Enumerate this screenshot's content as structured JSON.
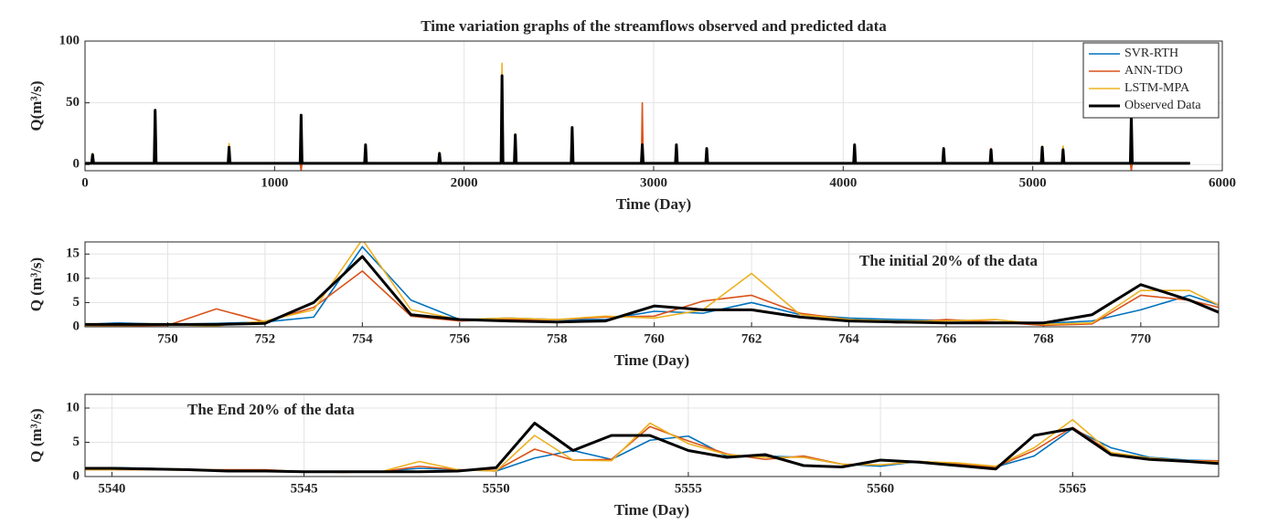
{
  "chart_data": [
    {
      "type": "line",
      "title": "Time variation graphs of the streamflows observed and predicted data",
      "x_label": "Time (Day)",
      "y_label": "Q(m³/s)",
      "xlim": [
        0,
        6000
      ],
      "xticks": [
        0,
        1000,
        2000,
        3000,
        4000,
        5000,
        6000
      ],
      "ylim": [
        -5,
        100
      ],
      "yticks": [
        0,
        50,
        100
      ],
      "grid": true,
      "legend": "upper right",
      "x": [
        0,
        35,
        40,
        45,
        365,
        370,
        375,
        755,
        760,
        765,
        1135,
        1140,
        1145,
        1475,
        1480,
        1485,
        1865,
        1870,
        1875,
        2195,
        2200,
        2205,
        2265,
        2270,
        2275,
        2565,
        2570,
        2575,
        2935,
        2940,
        2945,
        3115,
        3120,
        3125,
        3275,
        3280,
        3285,
        4055,
        4060,
        4065,
        4525,
        4530,
        4535,
        4775,
        4780,
        4785,
        5045,
        5050,
        5055,
        5155,
        5160,
        5165,
        5515,
        5520,
        5525,
        5830
      ],
      "series": [
        {
          "name": "SVR-RTH",
          "color": "#0072bd",
          "values": [
            1,
            1,
            7,
            1,
            1,
            40,
            1,
            1,
            13,
            1,
            1,
            38,
            1,
            1,
            14,
            1,
            1,
            8,
            1,
            1,
            65,
            1,
            1,
            22,
            1,
            1,
            27,
            1,
            1,
            15,
            1,
            1,
            14,
            1,
            1,
            12,
            1,
            1,
            15,
            1,
            1,
            12,
            1,
            1,
            11,
            1,
            1,
            13,
            1,
            1,
            13,
            1,
            1,
            38,
            1,
            1
          ]
        },
        {
          "name": "ANN-TDO",
          "color": "#d95319",
          "values": [
            1,
            1,
            6,
            1,
            1,
            42,
            1,
            1,
            15,
            1,
            1,
            -5,
            1,
            1,
            13,
            1,
            1,
            8,
            1,
            1,
            70,
            1,
            1,
            21,
            1,
            1,
            28,
            1,
            1,
            50,
            1,
            1,
            15,
            1,
            1,
            12,
            1,
            1,
            14,
            1,
            1,
            12,
            1,
            1,
            13,
            1,
            1,
            13,
            1,
            1,
            14,
            1,
            1,
            -5,
            1,
            1
          ]
        },
        {
          "name": "LSTM-MPA",
          "color": "#edb120",
          "values": [
            1,
            1,
            9,
            1,
            1,
            43,
            1,
            1,
            17,
            1,
            1,
            38,
            1,
            1,
            15,
            1,
            1,
            10,
            1,
            1,
            82,
            1,
            1,
            25,
            1,
            1,
            29,
            1,
            1,
            15,
            1,
            1,
            15,
            1,
            1,
            13,
            1,
            1,
            15,
            1,
            1,
            12,
            1,
            1,
            12,
            1,
            1,
            15,
            1,
            1,
            15,
            1,
            1,
            38,
            1,
            1
          ]
        },
        {
          "name": "Observed Data",
          "color": "#000000",
          "values": [
            1,
            1,
            8,
            1,
            1,
            44,
            1,
            1,
            14,
            1,
            1,
            40,
            1,
            1,
            16,
            1,
            1,
            9,
            1,
            1,
            72,
            1,
            1,
            24,
            1,
            1,
            30,
            1,
            1,
            16,
            1,
            1,
            16,
            1,
            1,
            13,
            1,
            1,
            16,
            1,
            1,
            13,
            1,
            1,
            12,
            1,
            1,
            14,
            1,
            1,
            12,
            1,
            1,
            40,
            1,
            1
          ]
        }
      ]
    },
    {
      "type": "line",
      "annotation": "The initial 20% of the data",
      "x_label": "Time (Day)",
      "y_label": "Q (m³/s)",
      "xlim": [
        748.3,
        771.6
      ],
      "xticks": [
        750,
        752,
        754,
        756,
        758,
        760,
        762,
        764,
        766,
        768,
        770
      ],
      "ylim": [
        0,
        17.5
      ],
      "yticks": [
        0,
        5,
        10,
        15
      ],
      "grid": true,
      "x": [
        748.3,
        749,
        750,
        751,
        752,
        753,
        754,
        755,
        756,
        757,
        758,
        759,
        760,
        761,
        762,
        763,
        764,
        765,
        766,
        767,
        768,
        769,
        770,
        771,
        771.6
      ],
      "series": [
        {
          "color": "#0072bd",
          "values": [
            0.5,
            0.8,
            0.5,
            0.7,
            1,
            2,
            16.5,
            5.5,
            1.5,
            1.8,
            1.5,
            1.5,
            3.2,
            2.8,
            5,
            2.5,
            1.8,
            1.5,
            1.3,
            1,
            0.7,
            1.2,
            3.5,
            6.5,
            4.5
          ]
        },
        {
          "color": "#d95319",
          "values": [
            0.3,
            0.2,
            0.3,
            3.7,
            1,
            4,
            11.5,
            2.2,
            1.2,
            1.5,
            1.5,
            2,
            2.2,
            5.3,
            6.5,
            2.8,
            1.5,
            0.8,
            1.5,
            1,
            0.3,
            0.6,
            6.5,
            5.5,
            4
          ]
        },
        {
          "color": "#edb120",
          "values": [
            0.3,
            0.3,
            0.4,
            0.2,
            1.2,
            3.5,
            18,
            3.5,
            1.5,
            1.8,
            1.5,
            2.2,
            1.8,
            3.5,
            11,
            2.5,
            1.5,
            1.2,
            1.2,
            1.5,
            0.5,
            0.8,
            7.5,
            7.5,
            4.5
          ]
        },
        {
          "color": "#000000",
          "values": [
            0.5,
            0.5,
            0.5,
            0.5,
            0.7,
            5,
            14.5,
            2.5,
            1.5,
            1.2,
            1,
            1.2,
            4.3,
            3.5,
            3.5,
            2,
            1.2,
            1,
            0.8,
            0.8,
            0.8,
            2.5,
            8.7,
            5.5,
            3
          ]
        }
      ]
    },
    {
      "type": "line",
      "annotation": "The End 20% of the data",
      "x_label": "Time (Day)",
      "y_label": "Q (m³/s)",
      "xlim": [
        5539.3,
        5568.8
      ],
      "xticks": [
        5540,
        5545,
        5550,
        5555,
        5560,
        5565
      ],
      "ylim": [
        0,
        12
      ],
      "yticks": [
        0,
        5,
        10
      ],
      "grid": true,
      "x": [
        5539.3,
        5540,
        5541,
        5542,
        5543,
        5544,
        5545,
        5546,
        5547,
        5548,
        5549,
        5550,
        5551,
        5552,
        5553,
        5554,
        5555,
        5556,
        5557,
        5558,
        5559,
        5560,
        5561,
        5562,
        5563,
        5564,
        5565,
        5566,
        5567,
        5568,
        5568.8
      ],
      "series": [
        {
          "color": "#0072bd",
          "values": [
            1.3,
            1.3,
            1.2,
            1,
            0.9,
            0.9,
            0.7,
            0.7,
            0.7,
            1.2,
            1,
            0.8,
            2.7,
            3.8,
            2.5,
            5.3,
            5.9,
            3,
            3,
            2.8,
            1.8,
            1.5,
            2.2,
            1.8,
            1.4,
            3,
            7,
            4.2,
            2.8,
            2.4,
            2.3
          ]
        },
        {
          "color": "#d95319",
          "values": [
            1,
            1,
            1,
            1,
            1,
            1,
            0.7,
            0.6,
            0.7,
            1.5,
            1,
            0.9,
            4,
            2.4,
            2.5,
            7.3,
            5.2,
            3.3,
            2.5,
            3,
            1.8,
            1.7,
            2.2,
            1.8,
            1.4,
            3.8,
            7.2,
            3.5,
            2.7,
            2.3,
            2.3
          ]
        },
        {
          "color": "#edb120",
          "values": [
            1,
            1,
            1,
            0.9,
            0.8,
            0.8,
            0.7,
            0.7,
            0.7,
            2.2,
            1,
            0.8,
            6,
            2.4,
            2.3,
            7.8,
            4.8,
            3.2,
            2.8,
            2.8,
            1.8,
            1.7,
            2.2,
            2,
            1.5,
            4.2,
            8.3,
            3.5,
            2.7,
            2.3,
            2.1
          ]
        },
        {
          "color": "#000000",
          "values": [
            1.2,
            1.2,
            1.1,
            1,
            0.8,
            0.8,
            0.7,
            0.7,
            0.7,
            0.7,
            0.8,
            1.3,
            7.8,
            3.8,
            6,
            6,
            3.8,
            2.8,
            3.2,
            1.6,
            1.4,
            2.4,
            2.1,
            1.6,
            1.1,
            6,
            7,
            3.2,
            2.5,
            2.2,
            1.9
          ]
        }
      ]
    }
  ]
}
